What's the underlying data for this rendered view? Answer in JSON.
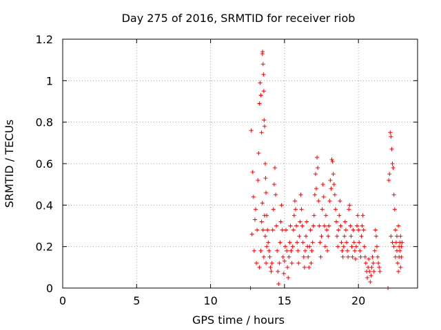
{
  "chart_data": {
    "type": "scatter",
    "title": "Day 275 of 2016, SRMTID for receiver riob",
    "xlabel": "GPS time / hours",
    "ylabel": "SRMTID / TECUs",
    "xlim": [
      0,
      24
    ],
    "ylim": [
      0,
      1.2
    ],
    "xticks": [
      "0",
      "5",
      "10",
      "15",
      "20"
    ],
    "yticks": [
      "0",
      "0.2",
      "0.4",
      "0.6",
      "0.8",
      "1",
      "1.2"
    ],
    "grid": true,
    "marker": "plus",
    "color": "#ff0000",
    "series": [
      {
        "points": [
          [
            12.7,
            0.0
          ],
          [
            12.75,
            0.76
          ],
          [
            12.8,
            0.26
          ],
          [
            12.85,
            0.56
          ],
          [
            12.9,
            0.44
          ],
          [
            12.95,
            0.18
          ],
          [
            13.0,
            0.33
          ],
          [
            13.05,
            0.38
          ],
          [
            13.1,
            0.12
          ],
          [
            13.15,
            0.28
          ],
          [
            13.2,
            0.52
          ],
          [
            13.25,
            0.65
          ],
          [
            13.3,
            0.89
          ],
          [
            13.35,
            0.99
          ],
          [
            13.4,
            0.93
          ],
          [
            13.45,
            0.75
          ],
          [
            13.5,
            1.13
          ],
          [
            13.52,
            1.14
          ],
          [
            13.55,
            1.08
          ],
          [
            13.58,
            1.03
          ],
          [
            13.6,
            0.95
          ],
          [
            13.62,
            0.81
          ],
          [
            13.65,
            0.78
          ],
          [
            13.7,
            0.6
          ],
          [
            13.72,
            0.53
          ],
          [
            13.75,
            0.46
          ],
          [
            13.8,
            0.35
          ],
          [
            13.85,
            0.28
          ],
          [
            13.9,
            0.22
          ],
          [
            13.95,
            0.18
          ],
          [
            13.3,
            0.1
          ],
          [
            13.4,
            0.18
          ],
          [
            13.45,
            0.32
          ],
          [
            13.5,
            0.41
          ],
          [
            13.55,
            0.28
          ],
          [
            13.6,
            0.15
          ],
          [
            13.65,
            0.35
          ],
          [
            13.7,
            0.25
          ],
          [
            13.75,
            0.12
          ],
          [
            13.8,
            0.2
          ],
          [
            14.0,
            0.15
          ],
          [
            14.05,
            0.1
          ],
          [
            14.1,
            0.08
          ],
          [
            14.15,
            0.12
          ],
          [
            14.2,
            0.28
          ],
          [
            14.25,
            0.38
          ],
          [
            14.3,
            0.5
          ],
          [
            14.35,
            0.58
          ],
          [
            14.4,
            0.45
          ],
          [
            14.45,
            0.3
          ],
          [
            14.5,
            0.18
          ],
          [
            14.55,
            0.08
          ],
          [
            14.6,
            0.02
          ],
          [
            14.65,
            0.12
          ],
          [
            14.7,
            0.22
          ],
          [
            14.75,
            0.32
          ],
          [
            14.8,
            0.4
          ],
          [
            14.85,
            0.28
          ],
          [
            14.9,
            0.15
          ],
          [
            14.95,
            0.07
          ],
          [
            15.0,
            0.13
          ],
          [
            15.05,
            0.2
          ],
          [
            15.1,
            0.28
          ],
          [
            15.15,
            0.18
          ],
          [
            15.2,
            0.1
          ],
          [
            15.25,
            0.05
          ],
          [
            15.3,
            0.15
          ],
          [
            15.35,
            0.22
          ],
          [
            15.4,
            0.3
          ],
          [
            15.45,
            0.18
          ],
          [
            15.5,
            0.12
          ],
          [
            15.55,
            0.2
          ],
          [
            15.6,
            0.28
          ],
          [
            15.65,
            0.35
          ],
          [
            15.7,
            0.42
          ],
          [
            15.75,
            0.38
          ],
          [
            15.8,
            0.3
          ],
          [
            15.85,
            0.22
          ],
          [
            15.9,
            0.18
          ],
          [
            15.95,
            0.12
          ],
          [
            16.0,
            0.25
          ],
          [
            16.05,
            0.32
          ],
          [
            16.1,
            0.45
          ],
          [
            16.15,
            0.38
          ],
          [
            16.2,
            0.3
          ],
          [
            16.25,
            0.22
          ],
          [
            16.3,
            0.15
          ],
          [
            16.35,
            0.1
          ],
          [
            16.4,
            0.18
          ],
          [
            16.45,
            0.25
          ],
          [
            16.5,
            0.32
          ],
          [
            16.55,
            0.2
          ],
          [
            16.6,
            0.15
          ],
          [
            16.65,
            0.1
          ],
          [
            16.7,
            0.2
          ],
          [
            16.75,
            0.28
          ],
          [
            16.8,
            0.12
          ],
          [
            16.85,
            0.18
          ],
          [
            16.9,
            0.22
          ],
          [
            16.95,
            0.3
          ],
          [
            17.0,
            0.35
          ],
          [
            17.05,
            0.45
          ],
          [
            17.1,
            0.55
          ],
          [
            17.15,
            0.48
          ],
          [
            17.2,
            0.63
          ],
          [
            17.25,
            0.58
          ],
          [
            17.3,
            0.42
          ],
          [
            17.35,
            0.3
          ],
          [
            17.4,
            0.22
          ],
          [
            17.45,
            0.15
          ],
          [
            17.5,
            0.25
          ],
          [
            17.55,
            0.38
          ],
          [
            17.6,
            0.5
          ],
          [
            17.65,
            0.44
          ],
          [
            17.7,
            0.3
          ],
          [
            17.75,
            0.2
          ],
          [
            17.8,
            0.35
          ],
          [
            17.85,
            0.28
          ],
          [
            17.9,
            0.18
          ],
          [
            17.95,
            0.25
          ],
          [
            18.0,
            0.3
          ],
          [
            18.05,
            0.42
          ],
          [
            18.1,
            0.52
          ],
          [
            18.15,
            0.48
          ],
          [
            18.2,
            0.62
          ],
          [
            18.25,
            0.61
          ],
          [
            18.3,
            0.55
          ],
          [
            18.35,
            0.5
          ],
          [
            18.4,
            0.45
          ],
          [
            18.45,
            0.38
          ],
          [
            18.5,
            0.32
          ],
          [
            18.55,
            0.25
          ],
          [
            18.6,
            0.2
          ],
          [
            18.65,
            0.28
          ],
          [
            18.7,
            0.35
          ],
          [
            18.75,
            0.42
          ],
          [
            18.8,
            0.3
          ],
          [
            18.85,
            0.22
          ],
          [
            18.9,
            0.18
          ],
          [
            18.95,
            0.15
          ],
          [
            19.0,
            0.2
          ],
          [
            19.05,
            0.25
          ],
          [
            19.1,
            0.32
          ],
          [
            19.15,
            0.28
          ],
          [
            19.2,
            0.22
          ],
          [
            19.25,
            0.18
          ],
          [
            19.3,
            0.15
          ],
          [
            19.35,
            0.38
          ],
          [
            19.4,
            0.4
          ],
          [
            19.45,
            0.3
          ],
          [
            19.5,
            0.25
          ],
          [
            19.55,
            0.2
          ],
          [
            19.6,
            0.15
          ],
          [
            19.65,
            0.28
          ],
          [
            19.7,
            0.22
          ],
          [
            19.75,
            0.18
          ],
          [
            19.8,
            0.14
          ],
          [
            19.85,
            0.2
          ],
          [
            19.9,
            0.3
          ],
          [
            19.95,
            0.35
          ],
          [
            20.0,
            0.28
          ],
          [
            20.05,
            0.22
          ],
          [
            20.1,
            0.18
          ],
          [
            20.15,
            0.15
          ],
          [
            20.2,
            0.25
          ],
          [
            20.25,
            0.3
          ],
          [
            20.3,
            0.35
          ],
          [
            20.35,
            0.28
          ],
          [
            20.4,
            0.2
          ],
          [
            20.45,
            0.15
          ],
          [
            20.5,
            0.12
          ],
          [
            20.55,
            0.08
          ],
          [
            20.6,
            0.05
          ],
          [
            20.65,
            0.1
          ],
          [
            20.7,
            0.14
          ],
          [
            20.75,
            0.08
          ],
          [
            20.8,
            0.03
          ],
          [
            20.85,
            0.06
          ],
          [
            20.9,
            0.1
          ],
          [
            20.95,
            0.15
          ],
          [
            21.0,
            0.12
          ],
          [
            21.05,
            0.08
          ],
          [
            21.1,
            0.18
          ],
          [
            21.15,
            0.28
          ],
          [
            21.2,
            0.25
          ],
          [
            21.25,
            0.2
          ],
          [
            21.3,
            0.15
          ],
          [
            21.35,
            0.12
          ],
          [
            21.4,
            0.1
          ],
          [
            21.45,
            0.08
          ],
          [
            22.0,
            0.0
          ],
          [
            22.05,
            0.52
          ],
          [
            22.1,
            0.55
          ],
          [
            22.15,
            0.75
          ],
          [
            22.2,
            0.73
          ],
          [
            22.25,
            0.67
          ],
          [
            22.3,
            0.6
          ],
          [
            22.35,
            0.58
          ],
          [
            22.4,
            0.45
          ],
          [
            22.45,
            0.38
          ],
          [
            22.5,
            0.28
          ],
          [
            22.55,
            0.22
          ],
          [
            22.6,
            0.18
          ],
          [
            22.65,
            0.12
          ],
          [
            22.7,
            0.08
          ],
          [
            22.75,
            0.15
          ],
          [
            22.8,
            0.22
          ],
          [
            22.85,
            0.25
          ],
          [
            22.9,
            0.2
          ],
          [
            22.95,
            0.22
          ],
          [
            22.2,
            0.25
          ],
          [
            22.3,
            0.22
          ],
          [
            22.4,
            0.2
          ],
          [
            22.5,
            0.15
          ],
          [
            22.6,
            0.25
          ],
          [
            22.7,
            0.3
          ],
          [
            22.8,
            0.18
          ],
          [
            22.9,
            0.15
          ],
          [
            22.85,
            0.1
          ],
          [
            22.75,
            0.2
          ]
        ]
      }
    ]
  }
}
